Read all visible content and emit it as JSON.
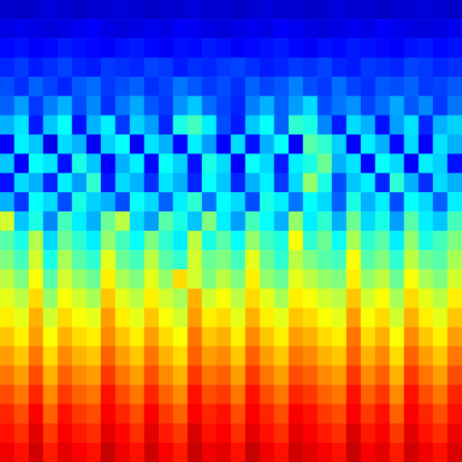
{
  "chart_data": {
    "type": "heatmap",
    "tick_labels": false,
    "zlim": [
      0,
      1
    ],
    "cells": [
      [
        0.08,
        0.07,
        0.08,
        0.09,
        0.08,
        0.07,
        0.08,
        0.08,
        0.09,
        0.08,
        0.07,
        0.08,
        0.08,
        0.09,
        0.08,
        0.08,
        0.07,
        0.08,
        0.09,
        0.08,
        0.08,
        0.07,
        0.08,
        0.09,
        0.08,
        0.08,
        0.07,
        0.08,
        0.08,
        0.09,
        0.08,
        0.07
      ],
      [
        0.1,
        0.11,
        0.1,
        0.09,
        0.1,
        0.11,
        0.12,
        0.1,
        0.09,
        0.1,
        0.11,
        0.1,
        0.12,
        0.11,
        0.1,
        0.09,
        0.1,
        0.11,
        0.1,
        0.12,
        0.11,
        0.1,
        0.09,
        0.1,
        0.11,
        0.1,
        0.12,
        0.11,
        0.1,
        0.09,
        0.1,
        0.11
      ],
      [
        0.13,
        0.14,
        0.12,
        0.13,
        0.15,
        0.14,
        0.13,
        0.12,
        0.14,
        0.15,
        0.13,
        0.12,
        0.14,
        0.13,
        0.15,
        0.14,
        0.12,
        0.13,
        0.14,
        0.15,
        0.13,
        0.12,
        0.14,
        0.13,
        0.15,
        0.14,
        0.13,
        0.12,
        0.14,
        0.15,
        0.13,
        0.14
      ],
      [
        0.16,
        0.18,
        0.15,
        0.17,
        0.19,
        0.16,
        0.15,
        0.18,
        0.17,
        0.16,
        0.19,
        0.18,
        0.15,
        0.17,
        0.16,
        0.18,
        0.19,
        0.17,
        0.15,
        0.16,
        0.18,
        0.17,
        0.19,
        0.16,
        0.15,
        0.18,
        0.17,
        0.16,
        0.19,
        0.18,
        0.16,
        0.17
      ],
      [
        0.2,
        0.17,
        0.22,
        0.19,
        0.16,
        0.21,
        0.23,
        0.18,
        0.2,
        0.22,
        0.17,
        0.19,
        0.24,
        0.21,
        0.18,
        0.2,
        0.17,
        0.22,
        0.19,
        0.21,
        0.25,
        0.2,
        0.18,
        0.23,
        0.19,
        0.17,
        0.21,
        0.2,
        0.22,
        0.18,
        0.19,
        0.21
      ],
      [
        0.22,
        0.28,
        0.18,
        0.25,
        0.3,
        0.2,
        0.26,
        0.17,
        0.24,
        0.29,
        0.21,
        0.18,
        0.27,
        0.32,
        0.23,
        0.19,
        0.16,
        0.25,
        0.3,
        0.22,
        0.28,
        0.34,
        0.2,
        0.24,
        0.27,
        0.19,
        0.23,
        0.29,
        0.21,
        0.26,
        0.18,
        0.24
      ],
      [
        0.3,
        0.35,
        0.15,
        0.32,
        0.38,
        0.14,
        0.3,
        0.36,
        0.18,
        0.33,
        0.28,
        0.16,
        0.4,
        0.44,
        0.36,
        0.2,
        0.15,
        0.32,
        0.38,
        0.22,
        0.42,
        0.4,
        0.26,
        0.15,
        0.34,
        0.3,
        0.14,
        0.28,
        0.35,
        0.16,
        0.3,
        0.33
      ],
      [
        0.12,
        0.36,
        0.32,
        0.1,
        0.34,
        0.3,
        0.11,
        0.33,
        0.38,
        0.12,
        0.35,
        0.3,
        0.13,
        0.36,
        0.28,
        0.12,
        0.34,
        0.14,
        0.3,
        0.38,
        0.12,
        0.46,
        0.42,
        0.33,
        0.12,
        0.36,
        0.3,
        0.13,
        0.34,
        0.12,
        0.35,
        0.3
      ],
      [
        0.32,
        0.12,
        0.38,
        0.35,
        0.14,
        0.4,
        0.32,
        0.12,
        0.3,
        0.36,
        0.13,
        0.38,
        0.33,
        0.14,
        0.4,
        0.34,
        0.12,
        0.38,
        0.34,
        0.15,
        0.36,
        0.4,
        0.48,
        0.3,
        0.35,
        0.13,
        0.38,
        0.34,
        0.12,
        0.36,
        0.33,
        0.14
      ],
      [
        0.14,
        0.34,
        0.3,
        0.16,
        0.36,
        0.28,
        0.42,
        0.15,
        0.34,
        0.3,
        0.17,
        0.35,
        0.3,
        0.16,
        0.38,
        0.32,
        0.16,
        0.3,
        0.36,
        0.18,
        0.34,
        0.52,
        0.4,
        0.2,
        0.32,
        0.36,
        0.16,
        0.42,
        0.3,
        0.17,
        0.34,
        0.3
      ],
      [
        0.3,
        0.18,
        0.38,
        0.34,
        0.2,
        0.4,
        0.33,
        0.3,
        0.2,
        0.38,
        0.34,
        0.22,
        0.36,
        0.42,
        0.24,
        0.38,
        0.34,
        0.2,
        0.4,
        0.36,
        0.24,
        0.38,
        0.34,
        0.22,
        0.4,
        0.3,
        0.36,
        0.2,
        0.38,
        0.34,
        0.22,
        0.36
      ],
      [
        0.58,
        0.32,
        0.4,
        0.26,
        0.44,
        0.36,
        0.3,
        0.48,
        0.56,
        0.34,
        0.28,
        0.46,
        0.4,
        0.32,
        0.5,
        0.36,
        0.28,
        0.44,
        0.38,
        0.3,
        0.52,
        0.36,
        0.42,
        0.3,
        0.48,
        0.34,
        0.4,
        0.28,
        0.46,
        0.36,
        0.32,
        0.44
      ],
      [
        0.46,
        0.4,
        0.55,
        0.34,
        0.48,
        0.42,
        0.36,
        0.52,
        0.44,
        0.38,
        0.5,
        0.42,
        0.36,
        0.56,
        0.4,
        0.46,
        0.38,
        0.52,
        0.44,
        0.4,
        0.62,
        0.42,
        0.48,
        0.38,
        0.54,
        0.42,
        0.46,
        0.36,
        0.52,
        0.4,
        0.44,
        0.5
      ],
      [
        0.5,
        0.44,
        0.58,
        0.4,
        0.54,
        0.46,
        0.42,
        0.6,
        0.48,
        0.44,
        0.56,
        0.46,
        0.42,
        0.58,
        0.48,
        0.5,
        0.44,
        0.6,
        0.48,
        0.42,
        0.56,
        0.5,
        0.46,
        0.44,
        0.62,
        0.46,
        0.5,
        0.42,
        0.56,
        0.48,
        0.46,
        0.54
      ],
      [
        0.56,
        0.5,
        0.62,
        0.46,
        0.58,
        0.52,
        0.48,
        0.64,
        0.54,
        0.5,
        0.6,
        0.52,
        0.66,
        0.58,
        0.5,
        0.56,
        0.5,
        0.64,
        0.52,
        0.48,
        0.6,
        0.56,
        0.52,
        0.5,
        0.64,
        0.52,
        0.56,
        0.48,
        0.62,
        0.54,
        0.5,
        0.58
      ],
      [
        0.6,
        0.56,
        0.66,
        0.52,
        0.62,
        0.58,
        0.54,
        0.68,
        0.6,
        0.56,
        0.64,
        0.58,
        0.54,
        0.7,
        0.58,
        0.62,
        0.56,
        0.66,
        0.6,
        0.54,
        0.64,
        0.62,
        0.58,
        0.56,
        0.68,
        0.58,
        0.62,
        0.54,
        0.66,
        0.6,
        0.56,
        0.64
      ],
      [
        0.64,
        0.6,
        0.7,
        0.58,
        0.66,
        0.62,
        0.6,
        0.72,
        0.64,
        0.6,
        0.68,
        0.62,
        0.58,
        0.72,
        0.64,
        0.66,
        0.6,
        0.7,
        0.64,
        0.6,
        0.68,
        0.66,
        0.62,
        0.6,
        0.72,
        0.62,
        0.66,
        0.58,
        0.7,
        0.64,
        0.6,
        0.68
      ],
      [
        0.68,
        0.64,
        0.72,
        0.62,
        0.7,
        0.66,
        0.64,
        0.74,
        0.68,
        0.64,
        0.72,
        0.66,
        0.62,
        0.76,
        0.68,
        0.7,
        0.64,
        0.74,
        0.68,
        0.64,
        0.72,
        0.7,
        0.66,
        0.64,
        0.76,
        0.66,
        0.7,
        0.62,
        0.74,
        0.68,
        0.64,
        0.72
      ],
      [
        0.72,
        0.68,
        0.76,
        0.66,
        0.74,
        0.7,
        0.68,
        0.78,
        0.72,
        0.68,
        0.76,
        0.7,
        0.66,
        0.78,
        0.72,
        0.74,
        0.68,
        0.78,
        0.72,
        0.68,
        0.76,
        0.74,
        0.7,
        0.68,
        0.78,
        0.7,
        0.74,
        0.66,
        0.78,
        0.72,
        0.68,
        0.76
      ],
      [
        0.76,
        0.72,
        0.8,
        0.7,
        0.78,
        0.74,
        0.72,
        0.82,
        0.76,
        0.72,
        0.8,
        0.74,
        0.7,
        0.82,
        0.76,
        0.78,
        0.72,
        0.82,
        0.76,
        0.72,
        0.8,
        0.78,
        0.74,
        0.72,
        0.82,
        0.74,
        0.78,
        0.7,
        0.82,
        0.76,
        0.72,
        0.8
      ],
      [
        0.8,
        0.76,
        0.84,
        0.74,
        0.82,
        0.78,
        0.76,
        0.86,
        0.8,
        0.76,
        0.84,
        0.78,
        0.74,
        0.86,
        0.8,
        0.82,
        0.76,
        0.86,
        0.8,
        0.76,
        0.84,
        0.82,
        0.78,
        0.76,
        0.86,
        0.78,
        0.82,
        0.74,
        0.86,
        0.8,
        0.76,
        0.84
      ],
      [
        0.84,
        0.8,
        0.88,
        0.78,
        0.86,
        0.82,
        0.8,
        0.88,
        0.84,
        0.8,
        0.88,
        0.82,
        0.78,
        0.88,
        0.84,
        0.86,
        0.8,
        0.88,
        0.84,
        0.8,
        0.88,
        0.86,
        0.82,
        0.8,
        0.88,
        0.82,
        0.86,
        0.78,
        0.88,
        0.84,
        0.8,
        0.86
      ],
      [
        0.86,
        0.83,
        0.9,
        0.82,
        0.88,
        0.85,
        0.83,
        0.9,
        0.87,
        0.83,
        0.9,
        0.85,
        0.82,
        0.91,
        0.86,
        0.88,
        0.83,
        0.9,
        0.86,
        0.83,
        0.9,
        0.88,
        0.85,
        0.83,
        0.91,
        0.85,
        0.88,
        0.82,
        0.9,
        0.86,
        0.83,
        0.89
      ],
      [
        0.89,
        0.86,
        0.92,
        0.85,
        0.9,
        0.88,
        0.86,
        0.93,
        0.89,
        0.86,
        0.92,
        0.88,
        0.85,
        0.93,
        0.89,
        0.9,
        0.86,
        0.93,
        0.89,
        0.86,
        0.92,
        0.9,
        0.88,
        0.86,
        0.93,
        0.88,
        0.9,
        0.85,
        0.92,
        0.89,
        0.86,
        0.91
      ]
    ]
  }
}
